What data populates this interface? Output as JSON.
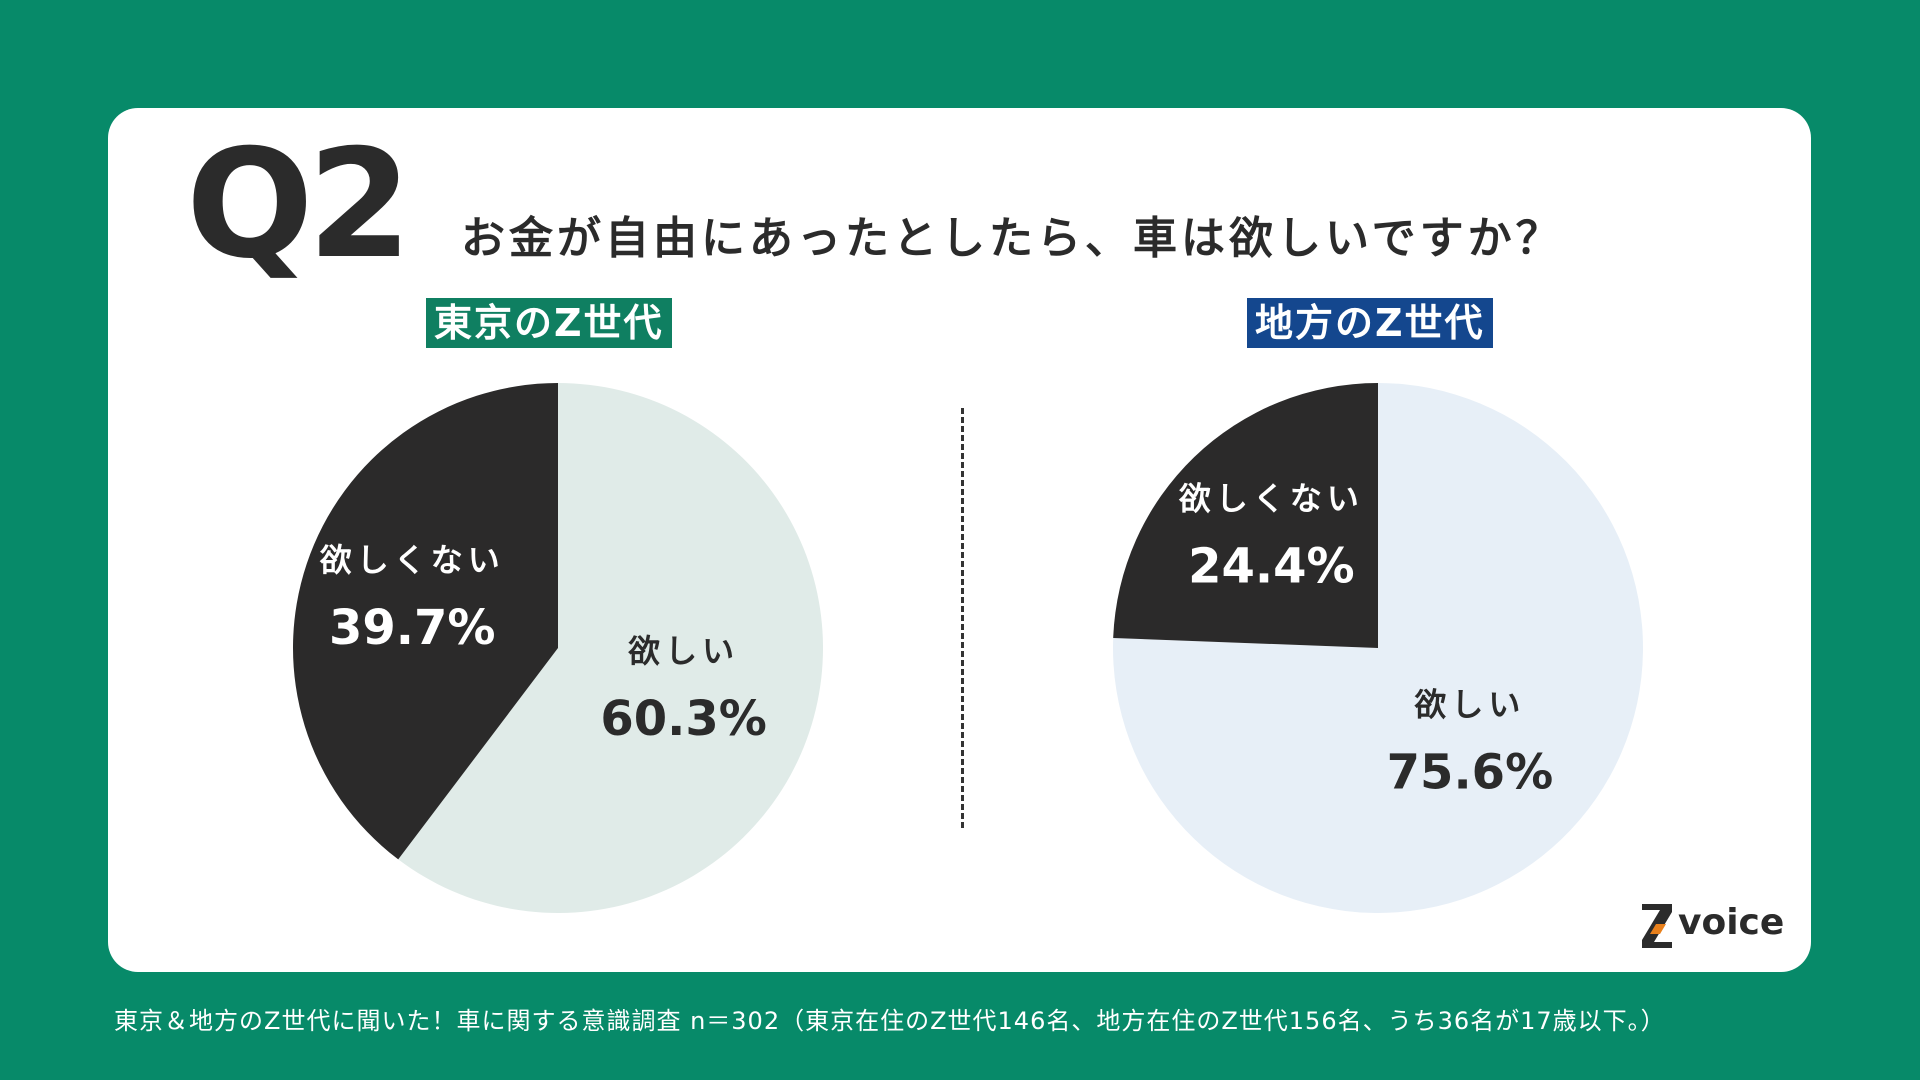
{
  "question": {
    "number": "Q2",
    "text": "お金が自由にあったとしたら、車は欲しいですか？"
  },
  "chart_data": [
    {
      "type": "pie",
      "title": "東京のZ世代",
      "title_color": "#0f7f61",
      "slices": [
        {
          "name": "欲しい",
          "value": 60.3,
          "label": "60.3%",
          "color": "#e0ebe8"
        },
        {
          "name": "欲しくない",
          "value": 39.7,
          "label": "39.7%",
          "color": "#2b2a2a"
        }
      ]
    },
    {
      "type": "pie",
      "title": "地方のZ世代",
      "title_color": "#14478e",
      "slices": [
        {
          "name": "欲しい",
          "value": 75.6,
          "label": "75.6%",
          "color": "#e7eff7"
        },
        {
          "name": "欲しくない",
          "value": 24.4,
          "label": "24.4%",
          "color": "#2b2a2a"
        }
      ]
    }
  ],
  "logo": {
    "text": "voice",
    "mark": "Z"
  },
  "footnote": "東京＆地方のZ世代に聞いた！車に関する意識調査 n＝302（東京在住のZ世代146名、地方在住のZ世代156名、うち36名が17歳以下。）"
}
